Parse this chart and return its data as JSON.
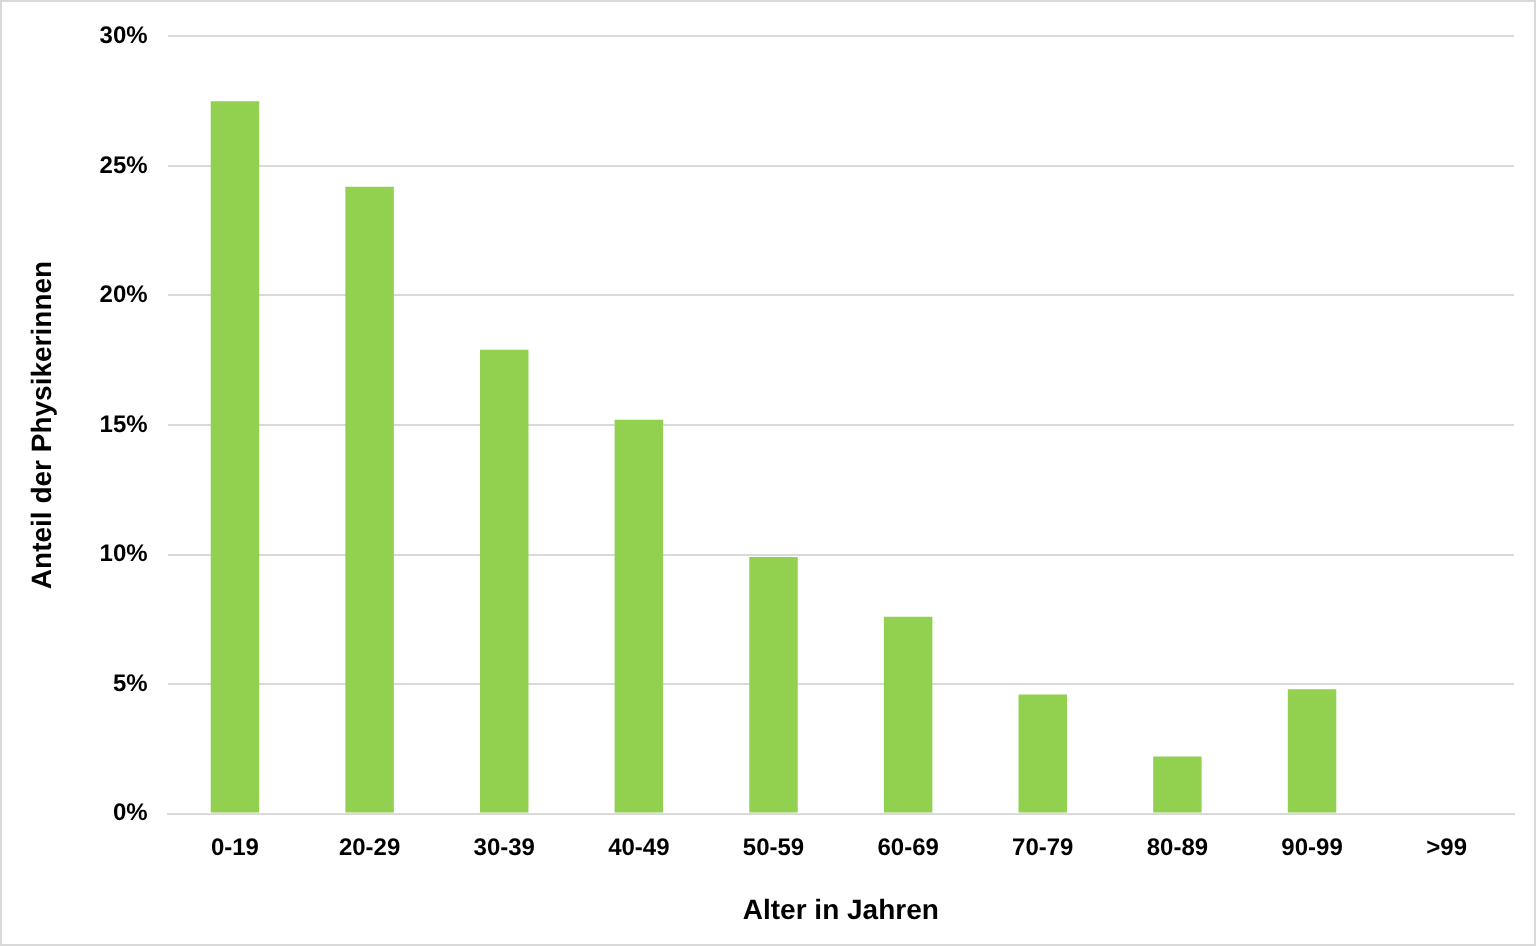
{
  "chart_data": {
    "type": "bar",
    "xlabel": "Alter in Jahren",
    "ylabel": "Anteil der Physikerinnen",
    "categories": [
      "0-19",
      "20-29",
      "30-39",
      "40-49",
      "50-59",
      "60-69",
      "70-79",
      "80-89",
      "90-99",
      ">99"
    ],
    "values": [
      27.5,
      24.2,
      17.9,
      15.2,
      9.9,
      7.6,
      4.6,
      2.2,
      4.8,
      0
    ],
    "color": "#92d050",
    "ylim": [
      0,
      30
    ],
    "yticks": [
      {
        "value": 0,
        "label": "0%"
      },
      {
        "value": 5,
        "label": "5%"
      },
      {
        "value": 10,
        "label": "10%"
      },
      {
        "value": 15,
        "label": "15%"
      },
      {
        "value": 20,
        "label": "20%"
      },
      {
        "value": 25,
        "label": "25%"
      },
      {
        "value": 30,
        "label": "30%"
      }
    ],
    "grid": "y"
  }
}
